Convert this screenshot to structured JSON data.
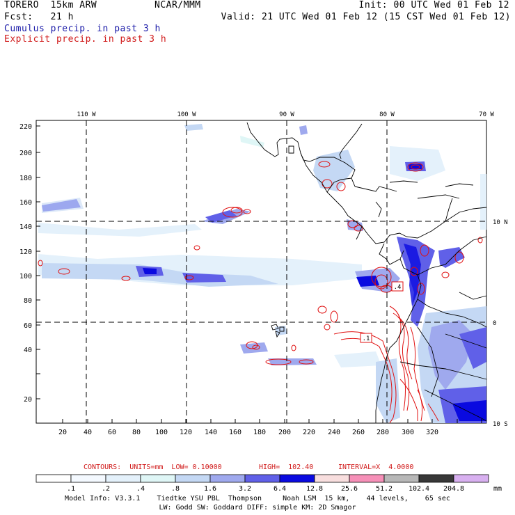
{
  "header": {
    "model": "TORERO  15km ARW",
    "center": "NCAR/MMM",
    "init": "Init: 00 UTC Wed 01 Feb 12",
    "fcst": "Fcst:   21 h",
    "valid": "Valid: 21 UTC Wed 01 Feb 12 (15 CST Wed 01 Feb 12)",
    "field1": "Cumulus precip. in past 3 h",
    "field2": "Explicit precip. in past 3 h"
  },
  "colors": {
    "cumulus": "#1a1aa8",
    "explicit": "#d01818",
    "contour": "#e01010",
    "coast": "#000000"
  },
  "axes": {
    "lon_labels": [
      "110 W",
      "100 W",
      "90 W",
      "80 W",
      "70 W"
    ],
    "lat_labels": [
      "10 N",
      "0",
      "10 S"
    ],
    "y_ticks": [
      "220",
      "200",
      "180",
      "160",
      "140",
      "120",
      "100",
      "80",
      "60",
      "40",
      "20"
    ],
    "x_ticks": [
      "20",
      "40",
      "60",
      "80",
      "100",
      "120",
      "140",
      "160",
      "180",
      "200",
      "220",
      "240",
      "260",
      "280",
      "300",
      "320"
    ]
  },
  "max_labels": [
    ".4",
    ".1"
  ],
  "contour_info": {
    "contours": "CONTOURS:  UNITS=mm  LOW= 0.10000",
    "high": "HIGH=  102.40",
    "interval": "INTERVAL=X  4.0000"
  },
  "scale": {
    "labels": [
      ".1",
      ".2",
      ".4",
      ".8",
      "1.6",
      "3.2",
      "6.4",
      "12.8",
      "25.6",
      "51.2",
      "102.4",
      "204.8"
    ],
    "unit": "mm",
    "colors": [
      "#ffffff",
      "#f4f9ff",
      "#e4f1fb",
      "#dff6f6",
      "#c4d8f4",
      "#9fa9ee",
      "#6060e8",
      "#0a0ae0",
      "#f8dede",
      "#f690b8",
      "#b8b8b8",
      "#383838",
      "#d8b0f0"
    ]
  },
  "footer": {
    "line1": "Model Info: V3.3.1    Tiedtke YSU PBL  Thompson     Noah LSM  15 km,    44 levels,    65 sec",
    "line2": "LW: Godd SW: Goddard DIFF: simple KM: 2D Smagor"
  }
}
